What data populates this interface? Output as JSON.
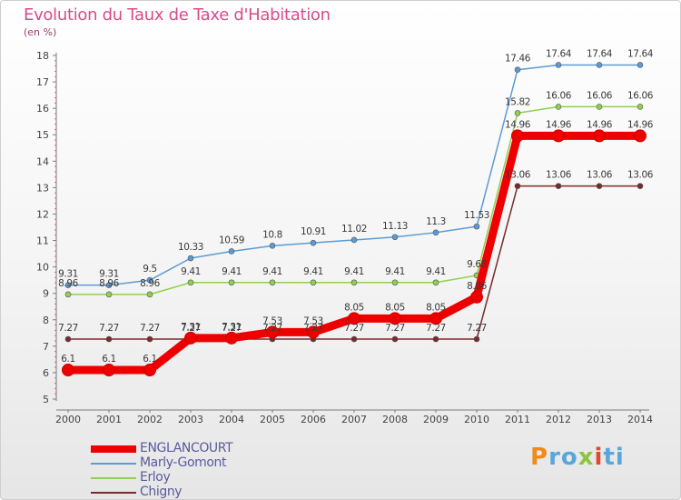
{
  "title": "Evolution du Taux de Taxe d'Habitation",
  "unit_label": "(en %)",
  "logo": {
    "text": "Proxiti",
    "colors": [
      "#f08a1c",
      "#5aa6d8",
      "#5aa6d8",
      "#8bc53f",
      "#e8452b",
      "#5aa6d8",
      "#5aa6d8"
    ]
  },
  "chart_data": {
    "type": "line",
    "x": [
      2000,
      2001,
      2002,
      2003,
      2004,
      2005,
      2006,
      2007,
      2008,
      2009,
      2010,
      2011,
      2012,
      2013,
      2014
    ],
    "ylim": [
      5,
      18
    ],
    "yticks": [
      5,
      6,
      7,
      8,
      9,
      10,
      11,
      12,
      13,
      14,
      15,
      16,
      17,
      18
    ],
    "grid": false,
    "legend_position": "bottom-left",
    "series": [
      {
        "name": "ENGLANCOURT",
        "color": "#ee0000",
        "emphasis": true,
        "values": [
          6.1,
          6.1,
          6.1,
          7.31,
          7.31,
          7.53,
          7.53,
          8.05,
          8.05,
          8.05,
          8.86,
          14.96,
          14.96,
          14.96,
          14.96
        ],
        "labels": [
          "6.1",
          "6.1",
          "6.1",
          "7.31",
          "7.31",
          "7.53",
          "7.53",
          "8.05",
          "8.05",
          "8.05",
          "8.86",
          "14.96",
          "14.96",
          "14.96",
          "14.96"
        ]
      },
      {
        "name": "Marly-Gomont",
        "color": "#5b9bd5",
        "values": [
          9.31,
          9.31,
          9.5,
          10.33,
          10.59,
          10.8,
          10.91,
          11.02,
          11.13,
          11.3,
          11.53,
          17.46,
          17.64,
          17.64,
          17.64
        ],
        "labels": [
          "9.31",
          "9.31",
          "9.5",
          "10.33",
          "10.59",
          "10.8",
          "10.91",
          "11.02",
          "11.13",
          "11.3",
          "11.53",
          "17.46",
          "17.64",
          "17.64",
          "17.64"
        ]
      },
      {
        "name": "Erloy",
        "color": "#8fd14f",
        "values": [
          8.96,
          8.96,
          8.96,
          9.41,
          9.41,
          9.41,
          9.41,
          9.41,
          9.41,
          9.41,
          9.68,
          15.82,
          16.06,
          16.06,
          16.06
        ],
        "labels": [
          "8.96",
          "8.96",
          "8.96",
          "9.41",
          "9.41",
          "9.41",
          "9.41",
          "9.41",
          "9.41",
          "9.41",
          "9.68",
          "15.82",
          "16.06",
          "16.06",
          "16.06"
        ]
      },
      {
        "name": "Chigny",
        "color": "#7a2a2a",
        "values": [
          7.27,
          7.27,
          7.27,
          7.27,
          7.27,
          7.27,
          7.27,
          7.27,
          7.27,
          7.27,
          7.27,
          13.06,
          13.06,
          13.06,
          13.06
        ],
        "labels": [
          "7.27",
          "7.27",
          "7.27",
          "7.27",
          "7.27",
          "7.27",
          "7.27",
          "7.27",
          "7.27",
          "7.27",
          "7.27",
          "13.06",
          "13.06",
          "13.06",
          "13.06"
        ]
      }
    ]
  }
}
